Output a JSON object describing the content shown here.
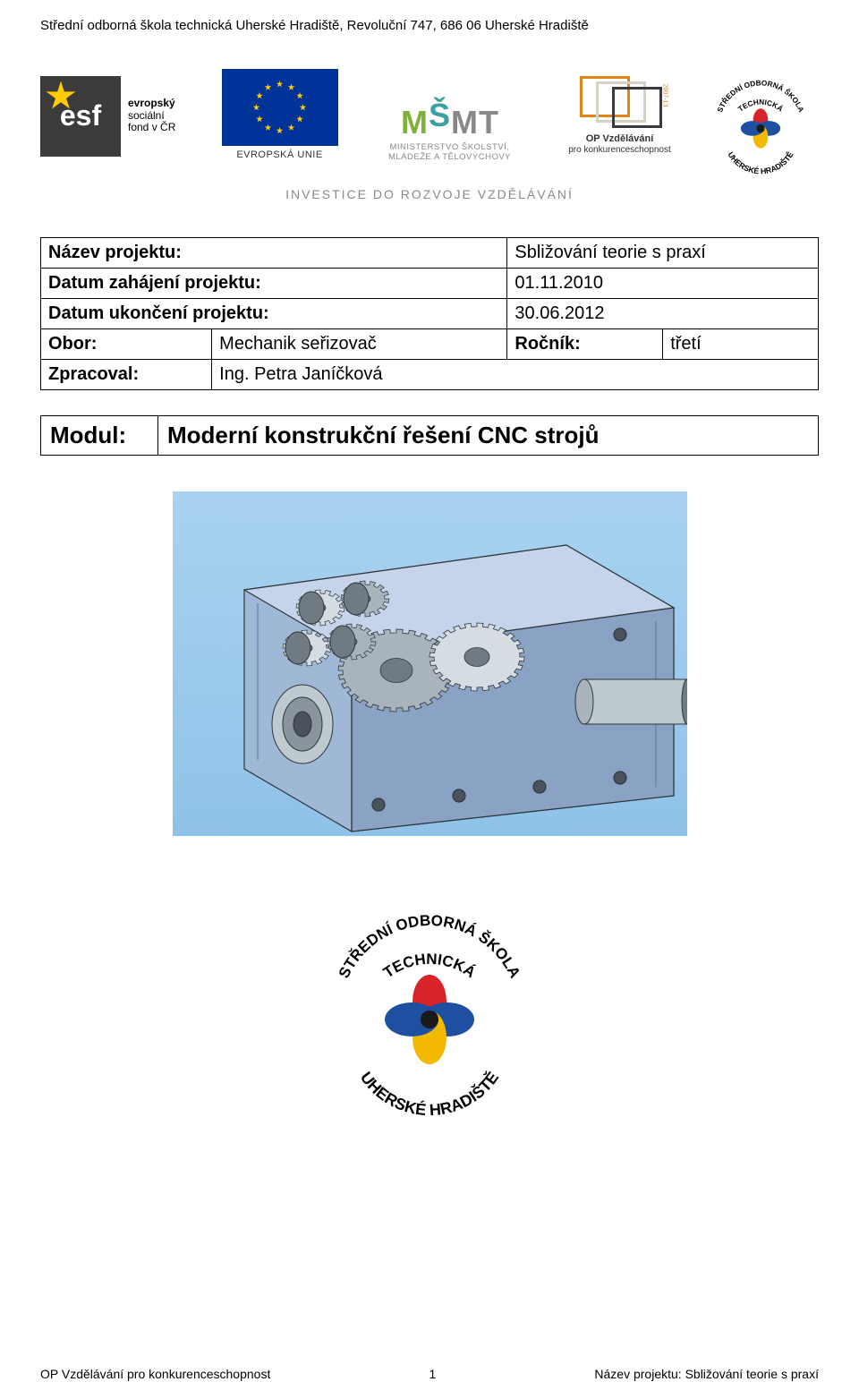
{
  "header": "Střední odborná škola technická Uherské Hradiště, Revoluční 747, 686 06 Uherské Hradiště",
  "logos": {
    "esf": {
      "badge_text": "esf",
      "right_line1": "evropský",
      "right_line2": "sociální",
      "right_line3": "fond v ČR",
      "badge_bg": "#3b3b3b",
      "star_color": "#ffcc00"
    },
    "eu": {
      "label": "EVROPSKÁ UNIE",
      "flag_bg": "#003399",
      "star_color": "#ffcc00"
    },
    "msmt": {
      "sub_line1": "MINISTERSTVO ŠKOLSTVÍ,",
      "sub_line2": "MLÁDEŽE A TĚLOVÝCHOVY"
    },
    "op": {
      "line1": "OP Vzdělávání",
      "line2": "pro konkurenceschopnost",
      "colors": {
        "orange": "#e08519",
        "beige": "#d6d1c4",
        "black": "#3a3a3a"
      }
    },
    "tagline": "INVESTICE DO ROZVOJE VZDĚLÁVÁNÍ",
    "school": {
      "arc_top": "STŘEDNÍ ODBORNÁ ŠKOLA",
      "mid": "TECHNICKÁ",
      "arc_bottom": "UHERSKÉ HRADIŠTĚ",
      "petal_colors": [
        "#d8232a",
        "#1f4fa0",
        "#f2b900",
        "#1f4fa0"
      ],
      "center_color": "#1a1a1a"
    }
  },
  "project": {
    "rows": [
      {
        "label": "Název projektu:",
        "value": "Sbližování teorie s praxí"
      },
      {
        "label": "Datum zahájení projektu:",
        "value": "01.11.2010"
      },
      {
        "label": "Datum ukončení projektu:",
        "value": "30.06.2012"
      }
    ],
    "obor_row": {
      "label": "Obor:",
      "value": "Mechanik seřizovač",
      "label2": "Ročník:",
      "value2": "třetí"
    },
    "zprac_row": {
      "label": "Zpracoval:",
      "value": "Ing. Petra Janíčková"
    }
  },
  "module": {
    "label": "Modul:",
    "value": "Moderní konstrukční řešení CNC strojů"
  },
  "illustration": {
    "bg_top": "#a9d2f0",
    "bg_bottom": "#8fc2e8",
    "housing_fill": "#9fb8d6",
    "housing_edge": "#6b7da1",
    "housing_top": "#c5d4ea",
    "gear_light": "#d5dde3",
    "gear_mid": "#a9b3bc",
    "gear_dark": "#6f7a83",
    "shaft_color": "#bfc9d0",
    "bolt_color": "#4a535b",
    "outline": "#2f363d"
  },
  "footer": {
    "left": "OP Vzdělávání pro konkurenceschopnost",
    "page": "1",
    "right": "Název projektu: Sbližování teorie s praxí"
  }
}
